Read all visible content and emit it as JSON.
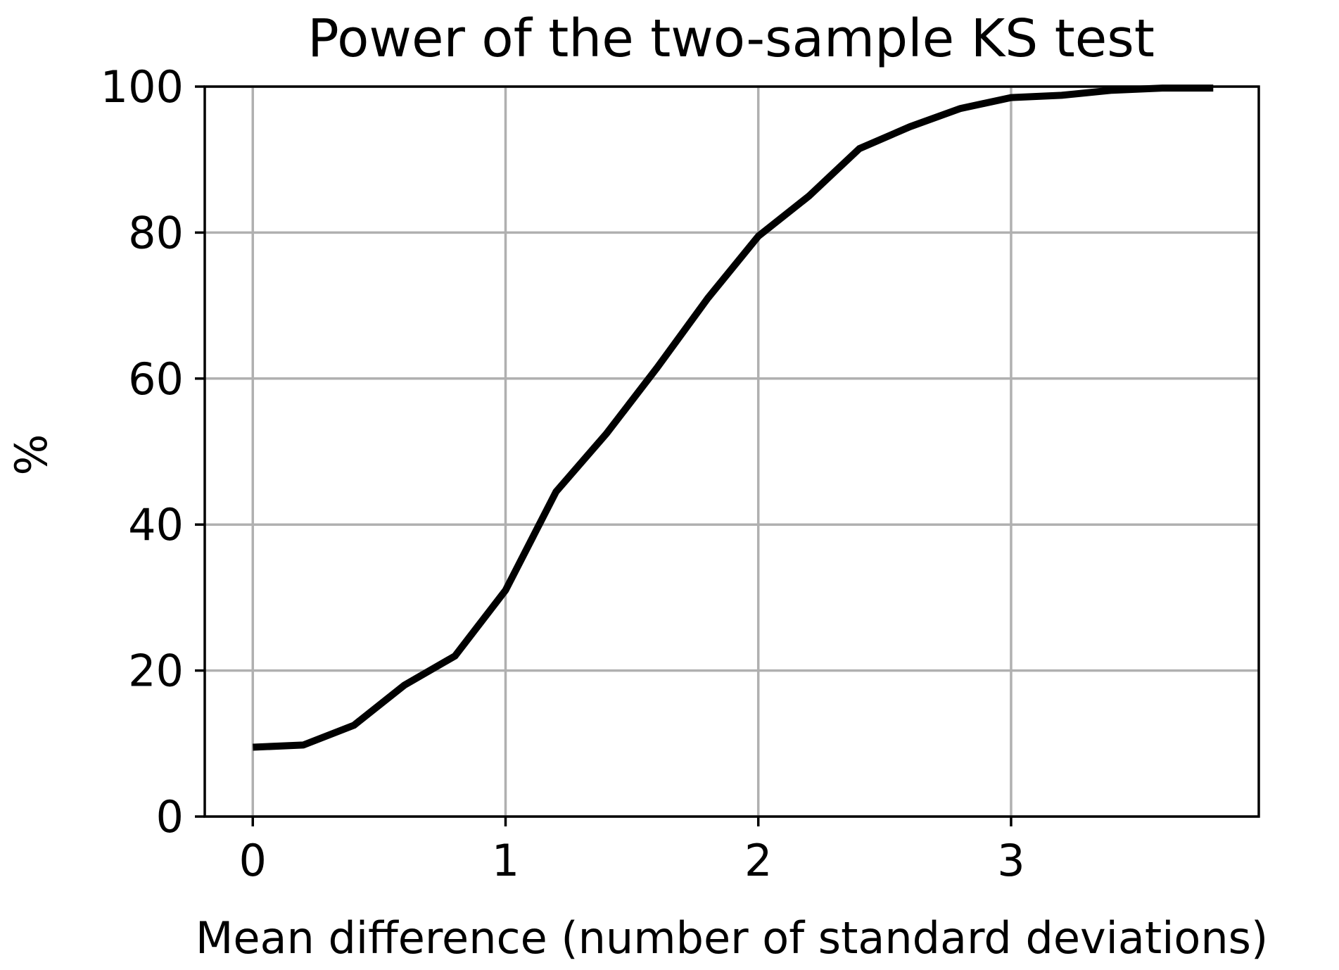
{
  "chart_data": {
    "type": "line",
    "title": "Power of the two-sample KS test",
    "xlabel": "Mean difference (number of standard deviations)",
    "ylabel": "%",
    "xlim": [
      -0.19,
      3.98
    ],
    "ylim": [
      0,
      100
    ],
    "xticks": [
      0,
      1,
      2,
      3
    ],
    "yticks": [
      0,
      20,
      40,
      60,
      80,
      100
    ],
    "grid": true,
    "legend": "none",
    "colors": {
      "line": "#000000",
      "grid": "#b0b0b0",
      "axes": "#000000"
    },
    "series": [
      {
        "x": [
          0,
          0.2,
          0.4,
          0.6,
          0.8,
          1.0,
          1.2,
          1.4,
          1.6,
          1.8,
          2.0,
          2.2,
          2.4,
          2.6,
          2.8,
          3.0,
          3.2,
          3.4,
          3.6,
          3.8
        ],
        "y": [
          9.5,
          9.8,
          12.5,
          18,
          22,
          31,
          44.5,
          52.5,
          61.5,
          71,
          79.5,
          85,
          91.5,
          94.5,
          97,
          98.5,
          98.8,
          99.5,
          99.8,
          99.8
        ]
      }
    ]
  }
}
